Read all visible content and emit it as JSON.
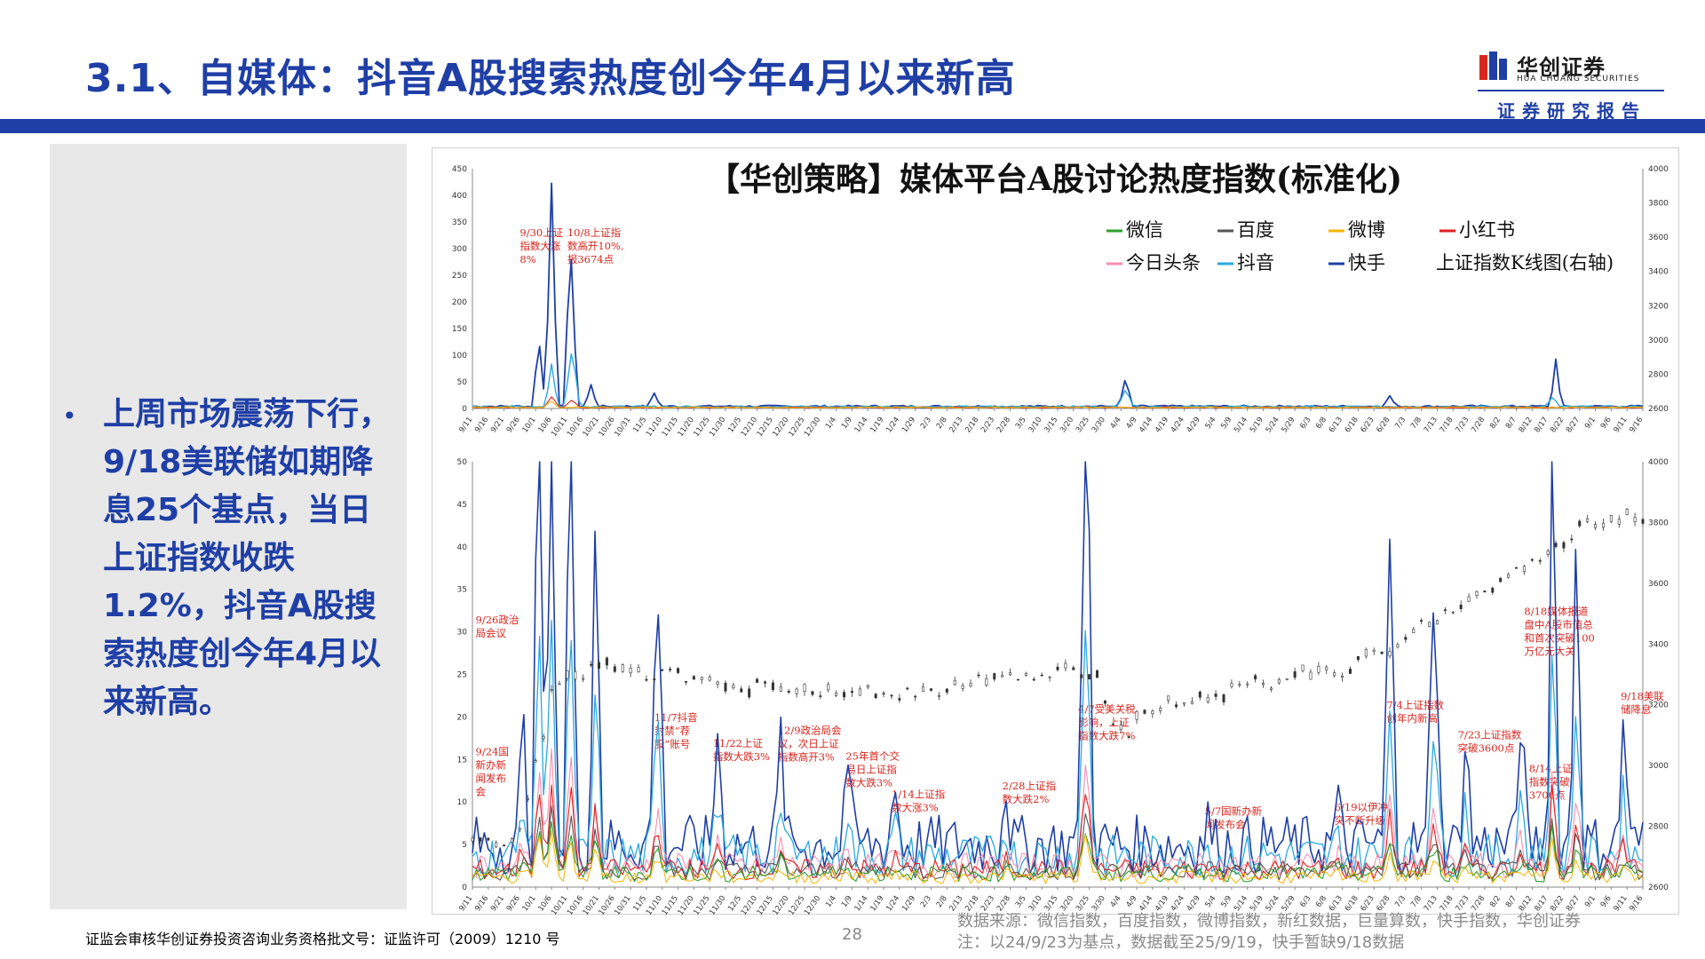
{
  "header": {
    "title": "3.1、自媒体：抖音A股搜索热度创今年4月以来新高",
    "logo_cn": "华创证券",
    "logo_en": "HUA CHUANG SECURITIES",
    "tagline": "证券研究报告",
    "brand_color": "#1f3fa6"
  },
  "summary": {
    "bullet": "上周市场震荡下行，9/18美联储如期降息25个基点，当日上证指数收跌1.2%，抖音A股搜索热度创今年4月以来新高。"
  },
  "footer": {
    "license": "证监会审核华创证券投资咨询业务资格批文号：证监许可（2009）1210 号",
    "page": "28",
    "source": "数据来源：微信指数，百度指数，微博指数，新红数据，巨量算数，快手指数，华创证券",
    "note": "注：以24/9/23为基点，数据截至25/9/19，快手暂缺9/18数据"
  },
  "chart_data": {
    "type": "line",
    "title": "【华创策略】媒体平台A股讨论热度指数(标准化)",
    "legend": [
      {
        "name": "微信",
        "color": "#2ca02c"
      },
      {
        "name": "百度",
        "color": "#555555"
      },
      {
        "name": "微博",
        "color": "#f5b400"
      },
      {
        "name": "小红书",
        "color": "#e02020"
      },
      {
        "name": "今日头条",
        "color": "#f48fb1"
      },
      {
        "name": "抖音",
        "color": "#29a9e0"
      },
      {
        "name": "快手",
        "color": "#1f3fa6"
      },
      {
        "name": "上证指数K线图(右轴)",
        "color": "#444444"
      }
    ],
    "x_ticks": [
      "9/11",
      "9/16",
      "9/21",
      "9/26",
      "10/1",
      "10/6",
      "10/11",
      "10/16",
      "10/21",
      "10/26",
      "10/31",
      "11/5",
      "11/10",
      "11/15",
      "11/20",
      "11/25",
      "11/30",
      "12/5",
      "12/10",
      "12/15",
      "12/20",
      "12/25",
      "12/30",
      "1/4",
      "1/9",
      "1/14",
      "1/19",
      "1/24",
      "1/29",
      "2/3",
      "2/8",
      "2/13",
      "2/18",
      "2/23",
      "2/28",
      "3/5",
      "3/10",
      "3/15",
      "3/20",
      "3/25",
      "3/30",
      "4/4",
      "4/9",
      "4/14",
      "4/19",
      "4/24",
      "4/29",
      "5/4",
      "5/9",
      "5/14",
      "5/19",
      "5/24",
      "5/29",
      "6/3",
      "6/8",
      "6/13",
      "6/18",
      "6/23",
      "6/28",
      "7/3",
      "7/8",
      "7/13",
      "7/18",
      "7/23",
      "7/28",
      "8/2",
      "8/7",
      "8/12",
      "8/17",
      "8/22",
      "8/27",
      "9/1",
      "9/6",
      "9/11",
      "9/16"
    ],
    "panels": [
      {
        "ylim": [
          0,
          450
        ],
        "yticks": [
          0,
          50,
          100,
          150,
          200,
          250,
          300,
          350,
          400,
          450
        ],
        "y2lim": [
          2600,
          4000
        ],
        "y2ticks": [
          2600,
          2800,
          3000,
          3200,
          3400,
          3600,
          3800,
          4000
        ],
        "annotations": [
          {
            "text": "9/30上证指数大涨8%",
            "lines": [
              "9/30上证",
              "指数大涨",
              "8%"
            ],
            "x": 3
          },
          {
            "text": "10/8上证指数高开10%，报3674点",
            "lines": [
              "10/8上证指",
              "数高开10%,",
              "报3674点"
            ],
            "x": 6
          }
        ]
      },
      {
        "ylim": [
          0,
          50
        ],
        "yticks": [
          0,
          5,
          10,
          15,
          20,
          25,
          30,
          35,
          40,
          45,
          50
        ],
        "y2lim": [
          2600,
          4000
        ],
        "y2ticks": [
          2600,
          2800,
          3000,
          3200,
          3400,
          3600,
          3800,
          4000
        ],
        "annotations": [
          {
            "text": "9/26政治局会议",
            "lines": [
              "9/26政治",
              "局会议"
            ],
            "x": 0.2,
            "y": 31
          },
          {
            "text": "9/24国新办新闻发布会",
            "lines": [
              "9/24国",
              "新办新",
              "闻发布",
              "会"
            ],
            "x": 0.2,
            "y": 15.5
          },
          {
            "text": "11/7抖音封禁“荐股”账号",
            "lines": [
              "11/7抖音",
              "封禁“荐",
              "股”账号"
            ],
            "x": 11.5,
            "y": 19.5
          },
          {
            "text": "11/22上证指数大跌3%",
            "lines": [
              "11/22上证",
              "指数大跌3%"
            ],
            "x": 15.2,
            "y": 16.5
          },
          {
            "text": "12/9政治局会议，次日上证指数高开3%",
            "lines": [
              "12/9政治局会",
              "议，次日上证",
              "指数高开3%"
            ],
            "x": 19.3,
            "y": 18
          },
          {
            "text": "25年首个交易日上证指数大跌3%",
            "lines": [
              "25年首个交",
              "易日上证指",
              "数大跌3%"
            ],
            "x": 23.6,
            "y": 15
          },
          {
            "text": "1/14上证指数大涨3%",
            "lines": [
              "1/14上证指",
              "数大涨3%"
            ],
            "x": 26.5,
            "y": 10.5
          },
          {
            "text": "2/28上证指数大跌2%",
            "lines": [
              "2/28上证指",
              "数大跌2%"
            ],
            "x": 33.5,
            "y": 11.5
          },
          {
            "text": "4/7受美关税影响，上证指数大跌7%",
            "lines": [
              "4/7受美关税",
              "影响，上证",
              "指数大跌7%"
            ],
            "x": 38.3,
            "y": 20.5
          },
          {
            "text": "5/7国新办新闻发布会",
            "lines": [
              "5/7国新办新",
              "闻发布会"
            ],
            "x": 46.3,
            "y": 8.5
          },
          {
            "text": "6/19以伊冲突不断升级",
            "lines": [
              "6/19以伊冲",
              "突不断升级"
            ],
            "x": 54.5,
            "y": 9
          },
          {
            "text": "7/4上证指数创年内新高",
            "lines": [
              "7/4上证指数",
              "创年内新高"
            ],
            "x": 57.8,
            "y": 21
          },
          {
            "text": "7/23上证指数突破3600点",
            "lines": [
              "7/23上证指数",
              "突破3600点"
            ],
            "x": 62.3,
            "y": 17.5
          },
          {
            "text": "8/18媒体报道盘中A股市值总和首次突破100万亿元大关",
            "lines": [
              "8/18媒体报道",
              "盘中A股市值总",
              "和首次突破100",
              "万亿元大关"
            ],
            "x": 66.5,
            "y": 32
          },
          {
            "text": "8/14上证指数突破3700点",
            "lines": [
              "8/14上证",
              "指数突破",
              "3700点"
            ],
            "x": 66.8,
            "y": 13.5
          },
          {
            "text": "9/18美联储降息",
            "lines": [
              "9/18美联",
              "储降息"
            ],
            "x": 72.6,
            "y": 22
          }
        ]
      }
    ]
  }
}
